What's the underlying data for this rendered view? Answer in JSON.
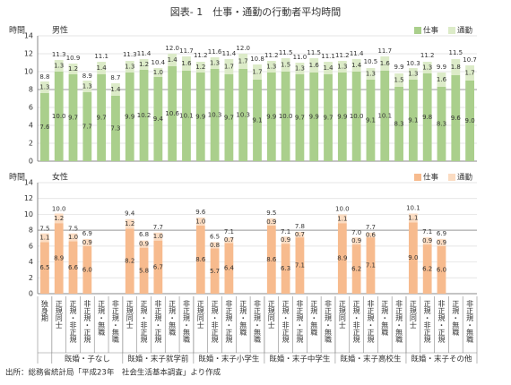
{
  "title": "図表- 1　仕事・通勤の行動者平均時間",
  "source": "出所：総務省統計局「平成23年　社会生活基本調査」より作成",
  "x_axis": {
    "groups": [
      {
        "categories": [
          "独身期"
        ]
      },
      {
        "name": "既婚・子なし",
        "categories": [
          "正規同士",
          "正規・非正規",
          "非正規・正規",
          "正規・無職",
          "非正規・無職"
        ]
      },
      {
        "name": "既婚・末子就学前",
        "categories": [
          "正規同士",
          "正規・非正規",
          "非正規・正規",
          "正規・無職",
          "非正規・無職"
        ]
      },
      {
        "name": "既婚・末子小学生",
        "categories": [
          "正規同士",
          "正規・非正規",
          "非正規・正規",
          "正規・無職",
          "非正規・無職"
        ]
      },
      {
        "name": "既婚・末子中学生",
        "categories": [
          "正規同士",
          "正規・非正規",
          "非正規・正規",
          "正規・無職",
          "非正規・無職"
        ]
      },
      {
        "name": "既婚・末子高校生",
        "categories": [
          "正規同士",
          "正規・非正規",
          "非正規・正規",
          "正規・無職",
          "非正規・無職"
        ]
      },
      {
        "name": "既婚・末子その他",
        "categories": [
          "正規同士",
          "正規・非正規",
          "非正規・正規",
          "正規・無職",
          "非正規・無職"
        ]
      }
    ]
  },
  "chart_data": [
    {
      "type": "bar",
      "stacked": true,
      "title": "男性",
      "y_label": "時間",
      "ylim": [
        0,
        14
      ],
      "yticks": [
        0,
        2,
        4,
        6,
        8,
        10,
        12,
        14
      ],
      "grid": true,
      "reference_line": 8,
      "legend": "upper right",
      "series": [
        {
          "name": "仕事",
          "color": "#aacf8c",
          "values": [
            7.6,
            10.0,
            9.7,
            7.7,
            9.7,
            7.3,
            9.9,
            10.2,
            9.4,
            10.6,
            10.1,
            9.9,
            10.3,
            9.7,
            10.3,
            9.1,
            9.9,
            10.0,
            9.7,
            9.9,
            9.7,
            9.9,
            10.0,
            9.1,
            10.1,
            8.3,
            9.1,
            9.8,
            8.3,
            9.6,
            9.0
          ],
          "value_labels": [
            "7.6",
            "10.0",
            "9.7",
            "7.7",
            "9.7",
            "7.3",
            "9.9",
            "10.2",
            "9.4",
            "10.6",
            "10.1",
            "9.9",
            "10.3",
            "9.7",
            "10.3",
            "9.1",
            "9.9",
            "10.0",
            "9.7",
            "9.9",
            "9.7",
            "9.9",
            "10.0",
            "9.1",
            "10.1",
            "8.3",
            "9.1",
            "9.8",
            "8.3",
            "9.6",
            "9.0"
          ]
        },
        {
          "name": "通勤",
          "color": "#dcebc8",
          "values": [
            1.3,
            1.3,
            1.2,
            1.3,
            1.4,
            1.4,
            1.3,
            1.2,
            1.0,
            1.4,
            1.6,
            1.2,
            1.3,
            1.7,
            1.7,
            1.7,
            1.3,
            1.5,
            1.3,
            1.6,
            1.4,
            1.3,
            1.4,
            1.3,
            1.6,
            1.5,
            1.3,
            1.3,
            1.6,
            1.8,
            1.7
          ],
          "value_labels": [
            "1.3",
            "1.3",
            "1.2",
            "1.3",
            "1.4",
            "1.4",
            "1.3",
            "1.2",
            "1.0",
            "1.4",
            "1.6",
            "1.2",
            "1.3",
            "1.7",
            "1.7",
            "1.7",
            "1.3",
            "1.5",
            "1.3",
            "1.6",
            "1.4",
            "1.3",
            "1.4",
            "1.3",
            "1.6",
            "1.5",
            "1.3",
            "1.3",
            "1.6",
            "1.8",
            "1.7"
          ]
        }
      ],
      "totals": [
        8.8,
        11.3,
        10.9,
        8.9,
        11.1,
        8.7,
        11.3,
        11.4,
        10.4,
        12.0,
        11.7,
        11.2,
        11.6,
        11.4,
        12.0,
        10.8,
        11.2,
        11.5,
        11.0,
        11.5,
        11.1,
        11.2,
        11.4,
        10.5,
        11.7,
        9.9,
        10.3,
        11.2,
        9.9,
        11.5,
        10.7
      ],
      "total_labels": [
        "8.8",
        "11.3",
        "10.9",
        "8.9",
        "11.1",
        "8.7",
        "11.3",
        "11.4",
        "10.4",
        "12.0",
        "11.7",
        "11.2",
        "11.6",
        "11.4",
        "12.0",
        "10.8",
        "11.2",
        "11.5",
        "11.0",
        "11.5",
        "11.1",
        "11.2",
        "11.4",
        "10.5",
        "11.7",
        "9.9",
        "10.3",
        "11.2",
        "9.9",
        "11.5",
        "10.7"
      ]
    },
    {
      "type": "bar",
      "stacked": true,
      "title": "女性",
      "y_label": "時間",
      "ylim": [
        0,
        14
      ],
      "yticks": [
        0,
        2,
        4,
        6,
        8,
        10,
        12,
        14
      ],
      "grid": true,
      "reference_line": 8,
      "legend": "upper right",
      "series": [
        {
          "name": "仕事",
          "color": "#f7bb8e",
          "values": [
            6.5,
            8.9,
            6.6,
            6.0,
            null,
            null,
            8.2,
            5.8,
            6.7,
            null,
            null,
            8.6,
            5.7,
            6.4,
            null,
            null,
            8.6,
            6.3,
            7.1,
            null,
            null,
            8.9,
            6.2,
            7.1,
            null,
            null,
            9.0,
            6.2,
            6.0,
            null,
            null
          ],
          "value_labels": [
            "6.5",
            "8.9",
            "6.6",
            "6.0",
            null,
            null,
            "8.2",
            "5.8",
            "6.7",
            null,
            null,
            "8.6",
            "5.7",
            "6.4",
            null,
            null,
            "8.6",
            "6.3",
            "7.1",
            null,
            null,
            "8.9",
            "6.2",
            "7.1",
            null,
            null,
            "9.0",
            "6.2",
            "6.0",
            null,
            null
          ]
        },
        {
          "name": "通勤",
          "color": "#fbdcc2",
          "values": [
            1.1,
            1.2,
            1.0,
            0.9,
            null,
            null,
            1.2,
            0.9,
            1.0,
            null,
            null,
            1.0,
            0.8,
            0.7,
            null,
            null,
            0.9,
            0.9,
            0.7,
            null,
            null,
            1.1,
            0.9,
            0.6,
            null,
            null,
            1.1,
            0.9,
            0.9,
            null,
            null
          ],
          "value_labels": [
            "1.1",
            "1.2",
            "1.0",
            "0.9",
            null,
            null,
            "1.2",
            "0.9",
            "1.0",
            null,
            null,
            "1.0",
            "0.8",
            "0.7",
            null,
            null,
            "0.9",
            "0.9",
            "0.7",
            null,
            null,
            "1.1",
            "0.9",
            "0.6",
            null,
            null,
            "1.1",
            "0.9",
            "0.9",
            null,
            null
          ]
        }
      ],
      "totals": [
        7.5,
        10.0,
        7.5,
        6.9,
        null,
        null,
        9.4,
        6.8,
        7.7,
        null,
        null,
        9.6,
        6.5,
        7.1,
        null,
        null,
        9.5,
        7.1,
        7.8,
        null,
        null,
        10.0,
        7.0,
        7.7,
        null,
        null,
        10.1,
        7.1,
        6.9,
        null,
        null
      ],
      "total_labels": [
        "7.5",
        "10.0",
        "7.5",
        "6.9",
        null,
        null,
        "9.4",
        "6.8",
        "7.7",
        null,
        null,
        "9.6",
        "6.5",
        "7.1",
        null,
        null,
        "9.5",
        "7.1",
        "7.8",
        null,
        null,
        "10.0",
        "7.0",
        "7.7",
        null,
        null,
        "10.1",
        "7.1",
        "6.9",
        null,
        null
      ]
    }
  ]
}
